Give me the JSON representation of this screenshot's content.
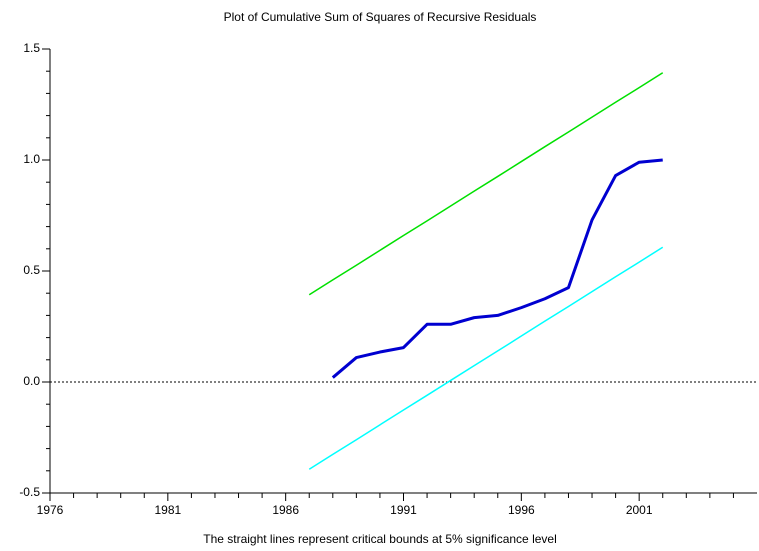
{
  "chart_data": {
    "type": "line",
    "title": "Plot of Cumulative Sum of Squares of Recursive Residuals",
    "x_label": "The straight lines represent critical bounds at 5% significance level",
    "x": [
      1987,
      1988,
      1989,
      1990,
      1991,
      1992,
      1993,
      1994,
      1995,
      1996,
      1997,
      1998,
      1999,
      2000,
      2001,
      2002
    ],
    "series": [
      {
        "color": "#00e000",
        "width": 1.5,
        "values": [
          0.393,
          0.46,
          0.526,
          0.593,
          0.66,
          0.726,
          0.793,
          0.86,
          0.926,
          0.993,
          1.06,
          1.126,
          1.193,
          1.26,
          1.326,
          1.393
        ]
      },
      {
        "color": "#00ffff",
        "width": 1.5,
        "values": [
          -0.393,
          -0.326,
          -0.26,
          -0.193,
          -0.126,
          -0.06,
          0.007,
          0.074,
          0.14,
          0.207,
          0.274,
          0.34,
          0.407,
          0.474,
          0.54,
          0.607
        ]
      },
      {
        "color": "#0000d0",
        "width": 3,
        "values": [
          null,
          0.02,
          0.11,
          0.135,
          0.155,
          0.26,
          0.26,
          0.29,
          0.3,
          0.335,
          0.375,
          0.425,
          0.73,
          0.93,
          0.99,
          1.0
        ]
      }
    ],
    "reference_line": 0,
    "xlim": [
      1976,
      2006
    ],
    "xticks": [
      1976,
      1981,
      1986,
      1991,
      1996,
      2001
    ],
    "xminorticks": [
      1977,
      1978,
      1979,
      1980,
      1982,
      1983,
      1984,
      1985,
      1987,
      1988,
      1989,
      1990,
      1992,
      1993,
      1994,
      1995,
      1997,
      1998,
      1999,
      2000,
      2002,
      2003,
      2004,
      2005
    ],
    "ylim": [
      -0.5,
      1.5
    ],
    "yticks": [
      {
        "value": -0.5,
        "label": "-0.5"
      },
      {
        "value": 0,
        "label": "0.0"
      },
      0.5,
      {
        "value": 1,
        "label": "1.0"
      },
      1.5
    ],
    "yminorticks": [
      -0.4,
      -0.3,
      -0.2,
      -0.1,
      0.1,
      0.2,
      0.3,
      0.4,
      0.6,
      0.7,
      0.8,
      0.9,
      1.1,
      1.2,
      1.3,
      1.4
    ]
  }
}
